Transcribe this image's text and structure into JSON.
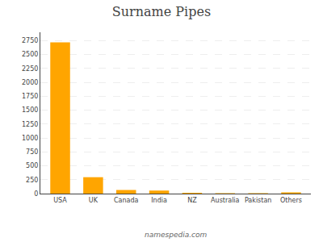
{
  "chart_data": {
    "type": "bar",
    "title": "Surname Pipes",
    "categories": [
      "USA",
      "UK",
      "Canada",
      "India",
      "NZ",
      "Australia",
      "Pakistan",
      "Others"
    ],
    "values": [
      2720,
      295,
      65,
      55,
      15,
      8,
      8,
      22
    ],
    "color": "#FFA500",
    "ylim": [
      0,
      2900
    ],
    "yticks": [
      0,
      250,
      500,
      750,
      1000,
      1250,
      1500,
      1750,
      2000,
      2250,
      2500,
      2750
    ],
    "grid": true,
    "annotations": [
      "namespedia.com"
    ]
  }
}
